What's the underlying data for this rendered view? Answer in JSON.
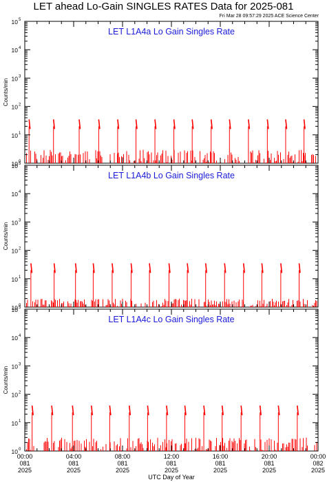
{
  "header": {
    "title": "LET ahead Lo-Gain SINGLES RATES Data for 2025-081",
    "timestamp": "Fri Mar 28 09:57:29 2025 ACE Science Center"
  },
  "colors": {
    "trace": "#ff0000",
    "panel_title": "#1a1ad8",
    "frame": "#000000"
  },
  "chart_data": [
    {
      "type": "line",
      "title": "LET L1A4a Lo Gain Singles Rate",
      "ylabel": "Counts/min",
      "xlabel": "UTC Day of Year",
      "yscale": "log",
      "ylim": [
        1,
        100000
      ],
      "xlim": [
        0,
        24
      ],
      "y_ticks": [
        {
          "base": "10",
          "exp": "0"
        },
        {
          "base": "10",
          "exp": "1"
        },
        {
          "base": "10",
          "exp": "2"
        },
        {
          "base": "10",
          "exp": "3"
        },
        {
          "base": "10",
          "exp": "4"
        },
        {
          "base": "10",
          "exp": "5"
        }
      ],
      "baseline_max": 3,
      "spike_hours": [
        0.35,
        2.35,
        4.45,
        6.05,
        7.6,
        9.1,
        10.65,
        12.2,
        13.7,
        15.25,
        16.75,
        18.3,
        19.85,
        21.35,
        22.85
      ],
      "spike_peak": 35
    },
    {
      "type": "line",
      "title": "LET L1A4b Lo Gain Singles Rate",
      "ylabel": "Counts/min",
      "xlabel": "UTC Day of Year",
      "yscale": "log",
      "ylim": [
        1,
        100000
      ],
      "xlim": [
        0,
        24
      ],
      "y_ticks": [
        {
          "base": "10",
          "exp": "0"
        },
        {
          "base": "10",
          "exp": "1"
        },
        {
          "base": "10",
          "exp": "2"
        },
        {
          "base": "10",
          "exp": "3"
        },
        {
          "base": "10",
          "exp": "4"
        },
        {
          "base": "10",
          "exp": "5"
        }
      ],
      "baseline_max": 2,
      "spike_hours": [
        0.5,
        2.4,
        4.15,
        5.6,
        7.15,
        8.7,
        10.2,
        11.8,
        13.3,
        14.8,
        16.35,
        17.9,
        19.4,
        20.95,
        22.45
      ],
      "spike_peak": 35
    },
    {
      "type": "line",
      "title": "LET L1A4c Lo Gain Singles Rate",
      "ylabel": "Counts/min",
      "xlabel": "UTC Day of Year",
      "yscale": "log",
      "ylim": [
        1,
        100000
      ],
      "xlim": [
        0,
        24
      ],
      "y_ticks": [
        {
          "base": "10",
          "exp": "0"
        },
        {
          "base": "10",
          "exp": "1"
        },
        {
          "base": "10",
          "exp": "2"
        },
        {
          "base": "10",
          "exp": "3"
        },
        {
          "base": "10",
          "exp": "4"
        },
        {
          "base": "10",
          "exp": "5"
        }
      ],
      "baseline_max": 3,
      "spike_hours": [
        0.6,
        2.2,
        3.9,
        5.45,
        6.95,
        8.55,
        10.05,
        11.6,
        13.1,
        14.65,
        16.15,
        17.7,
        19.25,
        20.75,
        22.3
      ],
      "spike_peak": 40
    }
  ],
  "x_ticks": [
    {
      "hour": 0,
      "time": "00:00",
      "day": "081",
      "year": "2025"
    },
    {
      "hour": 4,
      "time": "04:00",
      "day": "081",
      "year": "2025"
    },
    {
      "hour": 8,
      "time": "08:00",
      "day": "081",
      "year": "2025"
    },
    {
      "hour": 12,
      "time": "12:00",
      "day": "081",
      "year": "2025"
    },
    {
      "hour": 16,
      "time": "16:00",
      "day": "081",
      "year": "2025"
    },
    {
      "hour": 20,
      "time": "20:00",
      "day": "081",
      "year": "2025"
    },
    {
      "hour": 24,
      "time": "00:00",
      "day": "082",
      "year": "2025"
    }
  ]
}
